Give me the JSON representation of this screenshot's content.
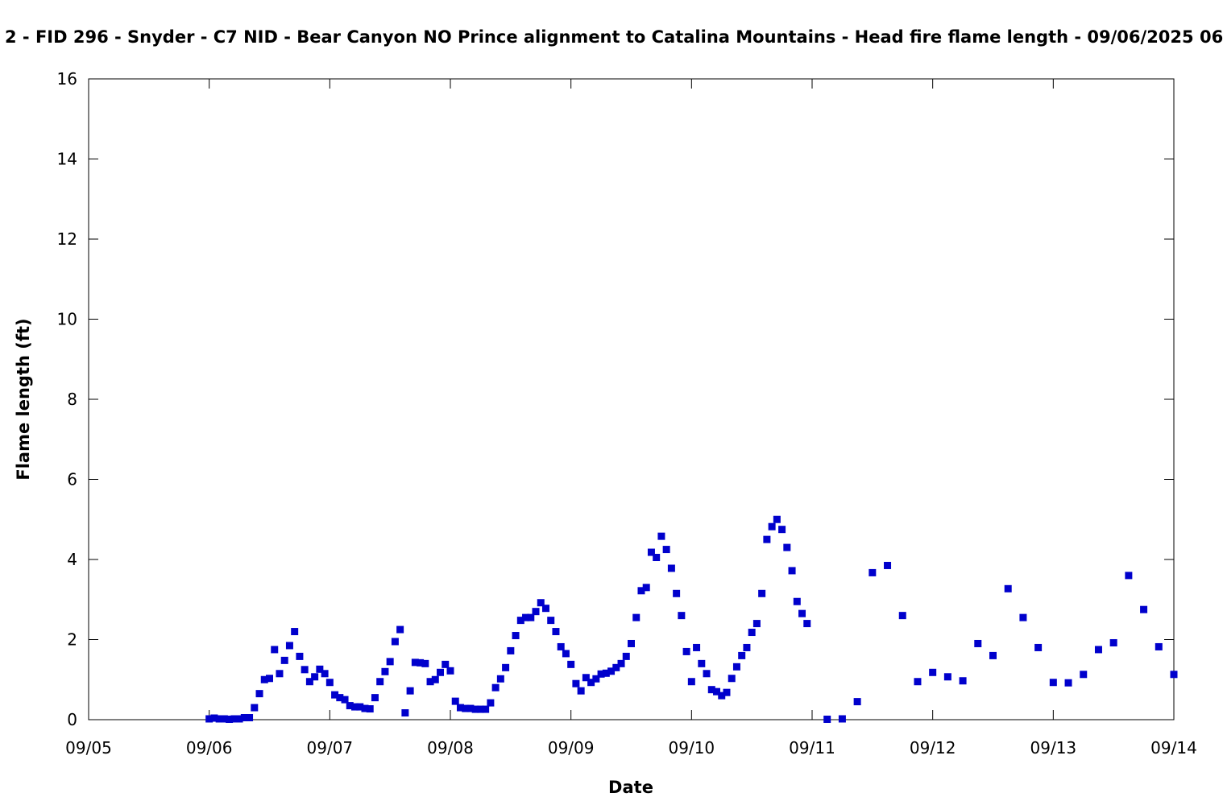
{
  "chart_data": {
    "type": "scatter",
    "title": "2 - FID 296 - Snyder - C7 NID - Bear Canyon NO Prince alignment to Catalina Mountains - Head fire flame length - 09/06/2025 06",
    "xlabel": "Date",
    "ylabel": "Flame length (ft)",
    "x_axis": {
      "min": "2025-09-05T00:00",
      "max": "2025-09-14T00:00",
      "ticks": [
        "2025-09-05",
        "2025-09-06",
        "2025-09-07",
        "2025-09-08",
        "2025-09-09",
        "2025-09-10",
        "2025-09-11",
        "2025-09-12",
        "2025-09-13",
        "2025-09-14"
      ],
      "tick_labels": [
        "09/05",
        "09/06",
        "09/07",
        "09/08",
        "09/09",
        "09/10",
        "09/11",
        "09/12",
        "09/13",
        "09/14"
      ]
    },
    "y_axis": {
      "min": 0,
      "max": 16,
      "ticks": [
        0,
        2,
        4,
        6,
        8,
        10,
        12,
        14,
        16
      ],
      "tick_labels": [
        "0",
        "2",
        "4",
        "6",
        "8",
        "10",
        "12",
        "14",
        "16"
      ]
    },
    "grid": false,
    "marker_color": "#0000cc",
    "series": [
      {
        "x": [
          "2025-09-06T00:00",
          "2025-09-06T01:00",
          "2025-09-06T02:00",
          "2025-09-06T03:00",
          "2025-09-06T04:00",
          "2025-09-06T05:00",
          "2025-09-06T06:00",
          "2025-09-06T07:00",
          "2025-09-06T08:00",
          "2025-09-06T09:00",
          "2025-09-06T10:00",
          "2025-09-06T11:00",
          "2025-09-06T12:00",
          "2025-09-06T13:00",
          "2025-09-06T14:00",
          "2025-09-06T15:00",
          "2025-09-06T16:00",
          "2025-09-06T17:00",
          "2025-09-06T18:00",
          "2025-09-06T19:00",
          "2025-09-06T20:00",
          "2025-09-06T21:00",
          "2025-09-06T22:00",
          "2025-09-06T23:00",
          "2025-09-07T00:00",
          "2025-09-07T01:00",
          "2025-09-07T02:00",
          "2025-09-07T03:00",
          "2025-09-07T04:00",
          "2025-09-07T05:00",
          "2025-09-07T06:00",
          "2025-09-07T07:00",
          "2025-09-07T08:00",
          "2025-09-07T09:00",
          "2025-09-07T10:00",
          "2025-09-07T11:00",
          "2025-09-07T12:00",
          "2025-09-07T13:00",
          "2025-09-07T14:00",
          "2025-09-07T15:00",
          "2025-09-07T16:00",
          "2025-09-07T17:00",
          "2025-09-07T18:00",
          "2025-09-07T19:00",
          "2025-09-07T20:00",
          "2025-09-07T21:00",
          "2025-09-07T22:00",
          "2025-09-07T23:00",
          "2025-09-08T00:00",
          "2025-09-08T01:00",
          "2025-09-08T02:00",
          "2025-09-08T03:00",
          "2025-09-08T04:00",
          "2025-09-08T05:00",
          "2025-09-08T06:00",
          "2025-09-08T07:00",
          "2025-09-08T08:00",
          "2025-09-08T09:00",
          "2025-09-08T10:00",
          "2025-09-08T11:00",
          "2025-09-08T12:00",
          "2025-09-08T13:00",
          "2025-09-08T14:00",
          "2025-09-08T15:00",
          "2025-09-08T16:00",
          "2025-09-08T17:00",
          "2025-09-08T18:00",
          "2025-09-08T19:00",
          "2025-09-08T20:00",
          "2025-09-08T21:00",
          "2025-09-08T22:00",
          "2025-09-08T23:00",
          "2025-09-09T00:00",
          "2025-09-09T01:00",
          "2025-09-09T02:00",
          "2025-09-09T03:00",
          "2025-09-09T04:00",
          "2025-09-09T05:00",
          "2025-09-09T06:00",
          "2025-09-09T07:00",
          "2025-09-09T08:00",
          "2025-09-09T09:00",
          "2025-09-09T10:00",
          "2025-09-09T11:00",
          "2025-09-09T12:00",
          "2025-09-09T13:00",
          "2025-09-09T14:00",
          "2025-09-09T15:00",
          "2025-09-09T16:00",
          "2025-09-09T17:00",
          "2025-09-09T18:00",
          "2025-09-09T19:00",
          "2025-09-09T20:00",
          "2025-09-09T21:00",
          "2025-09-09T22:00",
          "2025-09-09T23:00",
          "2025-09-10T00:00",
          "2025-09-10T01:00",
          "2025-09-10T02:00",
          "2025-09-10T03:00",
          "2025-09-10T04:00",
          "2025-09-10T05:00",
          "2025-09-10T06:00",
          "2025-09-10T07:00",
          "2025-09-10T08:00",
          "2025-09-10T09:00",
          "2025-09-10T10:00",
          "2025-09-10T11:00",
          "2025-09-10T12:00",
          "2025-09-10T13:00",
          "2025-09-10T14:00",
          "2025-09-10T15:00",
          "2025-09-10T16:00",
          "2025-09-10T17:00",
          "2025-09-10T18:00",
          "2025-09-10T19:00",
          "2025-09-10T20:00",
          "2025-09-10T21:00",
          "2025-09-10T22:00",
          "2025-09-10T23:00",
          "2025-09-11T03:00",
          "2025-09-11T06:00",
          "2025-09-11T09:00",
          "2025-09-11T12:00",
          "2025-09-11T15:00",
          "2025-09-11T18:00",
          "2025-09-11T21:00",
          "2025-09-12T00:00",
          "2025-09-12T03:00",
          "2025-09-12T06:00",
          "2025-09-12T09:00",
          "2025-09-12T12:00",
          "2025-09-12T15:00",
          "2025-09-12T18:00",
          "2025-09-12T21:00",
          "2025-09-13T00:00",
          "2025-09-13T03:00",
          "2025-09-13T06:00",
          "2025-09-13T09:00",
          "2025-09-13T12:00",
          "2025-09-13T15:00",
          "2025-09-13T18:00",
          "2025-09-13T21:00",
          "2025-09-14T00:00"
        ],
        "y": [
          0.02,
          0.04,
          0.02,
          0.02,
          0.01,
          0.02,
          0.02,
          0.05,
          0.05,
          0.3,
          0.65,
          1.0,
          1.03,
          1.75,
          1.15,
          1.48,
          1.85,
          2.2,
          1.58,
          1.25,
          0.95,
          1.07,
          1.26,
          1.15,
          0.93,
          0.62,
          0.55,
          0.5,
          0.35,
          0.32,
          0.32,
          0.28,
          0.27,
          0.55,
          0.95,
          1.2,
          1.45,
          1.95,
          2.25,
          0.17,
          0.72,
          1.43,
          1.42,
          1.4,
          0.95,
          1.0,
          1.18,
          1.38,
          1.22,
          0.46,
          0.3,
          0.28,
          0.28,
          0.26,
          0.26,
          0.26,
          0.42,
          0.8,
          1.02,
          1.3,
          1.72,
          2.1,
          2.48,
          2.55,
          2.55,
          2.7,
          2.92,
          2.78,
          2.48,
          2.2,
          1.82,
          1.65,
          1.38,
          0.9,
          0.72,
          1.05,
          0.93,
          1.02,
          1.14,
          1.16,
          1.21,
          1.3,
          1.4,
          1.58,
          1.9,
          2.55,
          3.22,
          3.3,
          4.18,
          4.05,
          4.58,
          4.25,
          3.78,
          3.15,
          2.6,
          1.7,
          0.95,
          1.8,
          1.4,
          1.15,
          0.75,
          0.7,
          0.6,
          0.68,
          1.03,
          1.32,
          1.6,
          1.8,
          2.18,
          2.4,
          3.15,
          4.5,
          4.82,
          5.0,
          4.75,
          4.3,
          3.72,
          2.95,
          2.65,
          2.4,
          0.01,
          0.02,
          0.45,
          3.67,
          3.85,
          2.6,
          0.95,
          1.18,
          1.07,
          0.97,
          1.9,
          1.6,
          3.27,
          2.55,
          1.8,
          0.93,
          0.92,
          1.13,
          1.75,
          1.92,
          3.6,
          2.75,
          1.82,
          1.13
        ]
      }
    ]
  }
}
